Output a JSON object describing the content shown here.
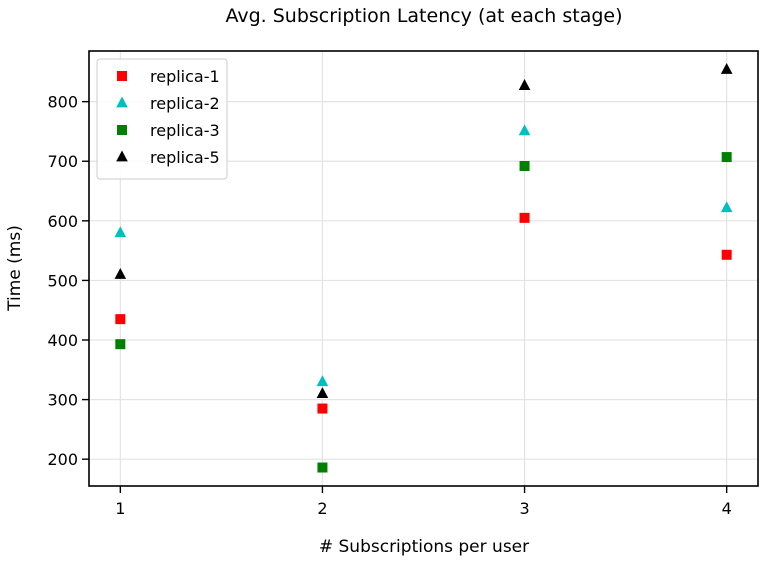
{
  "chart_data": {
    "type": "scatter",
    "title": "Avg. Subscription Latency (at each stage)",
    "xlabel": "# Subscriptions per user",
    "ylabel": "Time (ms)",
    "x": [
      1,
      2,
      3,
      4
    ],
    "xlim": [
      0.845,
      4.155
    ],
    "ylim": [
      155,
      885
    ],
    "x_ticks": [
      "1",
      "2",
      "3",
      "4"
    ],
    "y_ticks": [
      "200",
      "300",
      "400",
      "500",
      "600",
      "700",
      "800"
    ],
    "grid": true,
    "legend_position": "top-left",
    "series": [
      {
        "name": "replica-1",
        "marker": "square",
        "color": "#ff0000",
        "values": [
          435,
          285,
          605,
          543
        ]
      },
      {
        "name": "replica-2",
        "marker": "triangle",
        "color": "#00bfbf",
        "values": [
          580,
          330,
          751,
          622
        ]
      },
      {
        "name": "replica-3",
        "marker": "square",
        "color": "#008000",
        "values": [
          393,
          186,
          692,
          707
        ]
      },
      {
        "name": "replica-5",
        "marker": "triangle",
        "color": "#000000",
        "values": [
          510,
          310,
          827,
          854
        ]
      }
    ]
  }
}
